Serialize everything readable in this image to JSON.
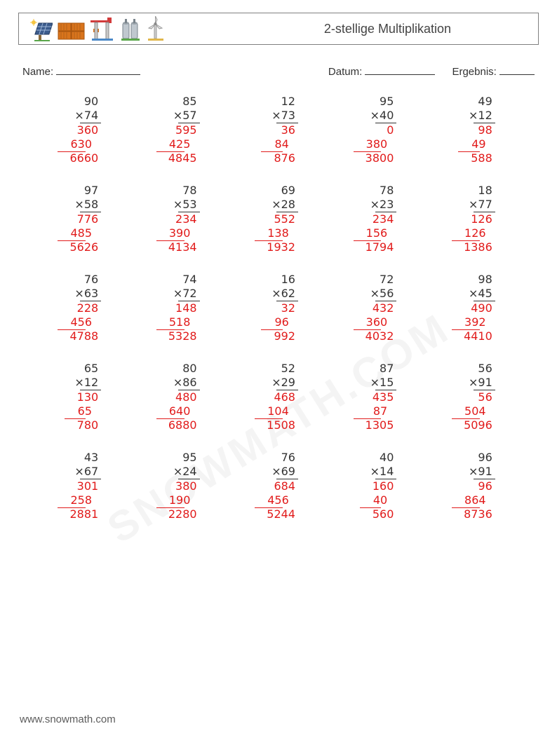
{
  "title": "2-stellige Multiplikation",
  "labels": {
    "name": "Name:",
    "date": "Datum:",
    "result": "Ergebnis:"
  },
  "footer": "www.snowmath.com",
  "watermark": "SNOWMATH.COM",
  "answer_color": "#e11b1b",
  "text_color": "#333333",
  "columns": 5,
  "problems": [
    {
      "a": 90,
      "b": 74,
      "p1": 360,
      "p2": 630,
      "r": 6660
    },
    {
      "a": 85,
      "b": 57,
      "p1": 595,
      "p2": 425,
      "r": 4845
    },
    {
      "a": 12,
      "b": 73,
      "p1": 36,
      "p2": 84,
      "r": 876
    },
    {
      "a": 95,
      "b": 40,
      "p1": 0,
      "p2": 380,
      "r": 3800
    },
    {
      "a": 49,
      "b": 12,
      "p1": 98,
      "p2": 49,
      "r": 588
    },
    {
      "a": 97,
      "b": 58,
      "p1": 776,
      "p2": 485,
      "r": 5626
    },
    {
      "a": 78,
      "b": 53,
      "p1": 234,
      "p2": 390,
      "r": 4134
    },
    {
      "a": 69,
      "b": 28,
      "p1": 552,
      "p2": 138,
      "r": 1932
    },
    {
      "a": 78,
      "b": 23,
      "p1": 234,
      "p2": 156,
      "r": 1794
    },
    {
      "a": 18,
      "b": 77,
      "p1": 126,
      "p2": 126,
      "r": 1386
    },
    {
      "a": 76,
      "b": 63,
      "p1": 228,
      "p2": 456,
      "r": 4788
    },
    {
      "a": 74,
      "b": 72,
      "p1": 148,
      "p2": 518,
      "r": 5328
    },
    {
      "a": 16,
      "b": 62,
      "p1": 32,
      "p2": 96,
      "r": 992
    },
    {
      "a": 72,
      "b": 56,
      "p1": 432,
      "p2": 360,
      "r": 4032
    },
    {
      "a": 98,
      "b": 45,
      "p1": 490,
      "p2": 392,
      "r": 4410
    },
    {
      "a": 65,
      "b": 12,
      "p1": 130,
      "p2": 65,
      "r": 780
    },
    {
      "a": 80,
      "b": 86,
      "p1": 480,
      "p2": 640,
      "r": 6880
    },
    {
      "a": 52,
      "b": 29,
      "p1": 468,
      "p2": 104,
      "r": 1508
    },
    {
      "a": 87,
      "b": 15,
      "p1": 435,
      "p2": 87,
      "r": 1305
    },
    {
      "a": 56,
      "b": 91,
      "p1": 56,
      "p2": 504,
      "r": 5096
    },
    {
      "a": 43,
      "b": 67,
      "p1": 301,
      "p2": 258,
      "r": 2881
    },
    {
      "a": 95,
      "b": 24,
      "p1": 380,
      "p2": 190,
      "r": 2280
    },
    {
      "a": 76,
      "b": 69,
      "p1": 684,
      "p2": 456,
      "r": 5244
    },
    {
      "a": 40,
      "b": 14,
      "p1": 160,
      "p2": 40,
      "r": 560
    },
    {
      "a": 96,
      "b": 91,
      "p1": 96,
      "p2": 864,
      "r": 8736
    }
  ],
  "icons": [
    {
      "name": "solar-panel-icon"
    },
    {
      "name": "containers-icon"
    },
    {
      "name": "port-crane-icon"
    },
    {
      "name": "silo-icon"
    },
    {
      "name": "wind-turbine-icon"
    }
  ]
}
